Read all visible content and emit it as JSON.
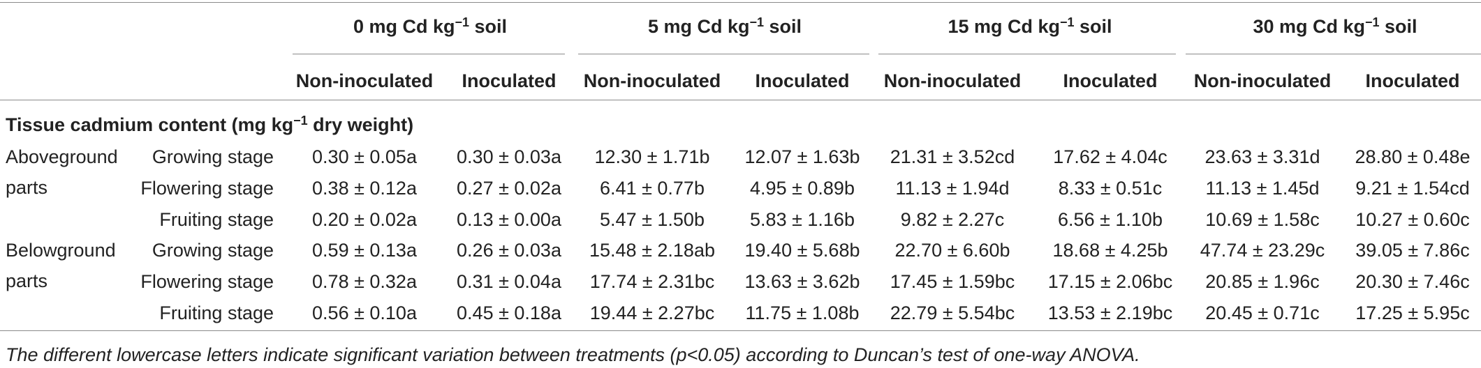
{
  "table": {
    "column_groups": [
      {
        "text": "0 mg Cd kg",
        "sup": "−1",
        "after": " soil"
      },
      {
        "text": "5 mg Cd kg",
        "sup": "−1",
        "after": " soil"
      },
      {
        "text": "15 mg Cd kg",
        "sup": "−1",
        "after": " soil"
      },
      {
        "text": "30 mg Cd kg",
        "sup": "−1",
        "after": " soil"
      }
    ],
    "subheaders": [
      "Non-inoculated",
      "Inoculated",
      "Non-inoculated",
      "Inoculated",
      "Non-inoculated",
      "Inoculated",
      "Non-inoculated",
      "Inoculated"
    ],
    "section": {
      "text": "Tissue cadmium content (mg kg",
      "sup": "−1",
      "after": " dry weight)"
    },
    "groups": [
      {
        "label": "Aboveground parts",
        "rows": [
          {
            "stage": "Growing stage",
            "cells": [
              "0.30 ± 0.05a",
              "0.30 ± 0.03a",
              "12.30 ± 1.71b",
              "12.07 ± 1.63b",
              "21.31 ± 3.52cd",
              "17.62 ± 4.04c",
              "23.63 ± 3.31d",
              "28.80 ± 0.48e"
            ]
          },
          {
            "stage": "Flowering stage",
            "cells": [
              "0.38 ± 0.12a",
              "0.27 ± 0.02a",
              "6.41 ± 0.77b",
              "4.95 ± 0.89b",
              "11.13 ± 1.94d",
              "8.33 ± 0.51c",
              "11.13 ± 1.45d",
              "9.21 ± 1.54cd"
            ]
          },
          {
            "stage": "Fruiting stage",
            "cells": [
              "0.20 ± 0.02a",
              "0.13 ± 0.00a",
              "5.47 ± 1.50b",
              "5.83 ± 1.16b",
              "9.82 ± 2.27c",
              "6.56 ± 1.10b",
              "10.69 ± 1.58c",
              "10.27 ± 0.60c"
            ]
          }
        ]
      },
      {
        "label": "Belowground parts",
        "rows": [
          {
            "stage": "Growing stage",
            "cells": [
              "0.59 ± 0.13a",
              "0.26 ± 0.03a",
              "15.48 ± 2.18ab",
              "19.40 ± 5.68b",
              "22.70 ± 6.60b",
              "18.68 ± 4.25b",
              "47.74 ± 23.29c",
              "39.05 ± 7.86c"
            ]
          },
          {
            "stage": "Flowering stage",
            "cells": [
              "0.78 ± 0.32a",
              "0.31 ± 0.04a",
              "17.74 ± 2.31bc",
              "13.63 ± 3.62b",
              "17.45 ± 1.59bc",
              "17.15 ± 2.06bc",
              "20.85 ± 1.96c",
              "20.30 ± 7.46c"
            ]
          },
          {
            "stage": "Fruiting stage",
            "cells": [
              "0.56 ± 0.10a",
              "0.45 ± 0.18a",
              "19.44 ± 2.27bc",
              "11.75 ± 1.08b",
              "22.79 ± 5.54bc",
              "13.53 ± 2.19bc",
              "20.45 ± 0.71c",
              "17.25 ± 5.95c"
            ]
          }
        ]
      }
    ]
  },
  "footnote": "The different lowercase letters indicate significant variation between treatments (p<0.05) according to Duncan’s test of one-way ANOVA."
}
